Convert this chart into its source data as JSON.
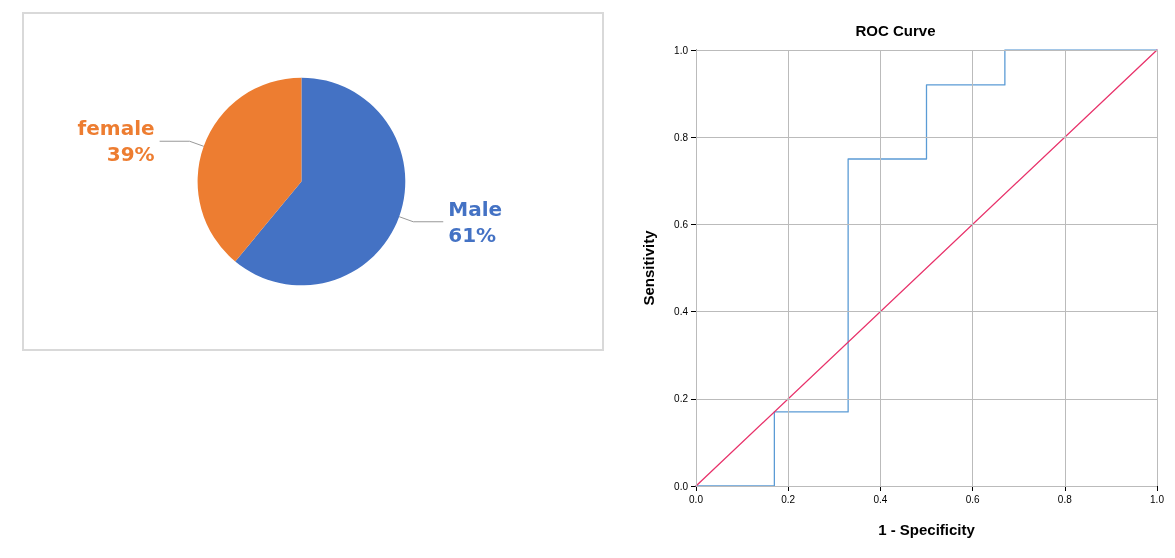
{
  "chart_data": [
    {
      "type": "pie",
      "categories": [
        "Male",
        "female"
      ],
      "values": [
        61,
        39
      ],
      "colors": [
        "#4472c4",
        "#ed7d31"
      ],
      "value_labels": [
        "61%",
        "39%"
      ],
      "legend": false
    },
    {
      "type": "line",
      "title": "ROC Curve",
      "xlabel": "1 - Specificity",
      "ylabel": "Sensitivity",
      "xlim": [
        0,
        1
      ],
      "ylim": [
        0,
        1
      ],
      "xticks": [
        {
          "value": 0,
          "label": "0.0"
        },
        {
          "value": 0.2,
          "label": "0.2"
        },
        {
          "value": 0.4,
          "label": "0.4"
        },
        {
          "value": 0.6,
          "label": "0.6"
        },
        {
          "value": 0.8,
          "label": "0.8"
        },
        {
          "value": 1,
          "label": "1.0"
        }
      ],
      "yticks": [
        {
          "value": 0,
          "label": "0.0"
        },
        {
          "value": 0.2,
          "label": "0.2"
        },
        {
          "value": 0.4,
          "label": "0.4"
        },
        {
          "value": 0.6,
          "label": "0.6"
        },
        {
          "value": 0.8,
          "label": "0.8"
        },
        {
          "value": 1,
          "label": "1.0"
        }
      ],
      "grid": true,
      "marker": "none",
      "line_style": "solid",
      "series": [
        {
          "color": "#5b9bd5",
          "x": [
            0,
            0.17,
            0.17,
            0.33,
            0.33,
            0.5,
            0.5,
            0.67,
            0.67,
            1
          ],
          "values": [
            0,
            0,
            0.17,
            0.17,
            0.75,
            0.75,
            0.92,
            0.92,
            1,
            1
          ]
        },
        {
          "color": "#e8336b",
          "x": [
            0,
            1
          ],
          "values": [
            0,
            1
          ]
        }
      ]
    }
  ]
}
